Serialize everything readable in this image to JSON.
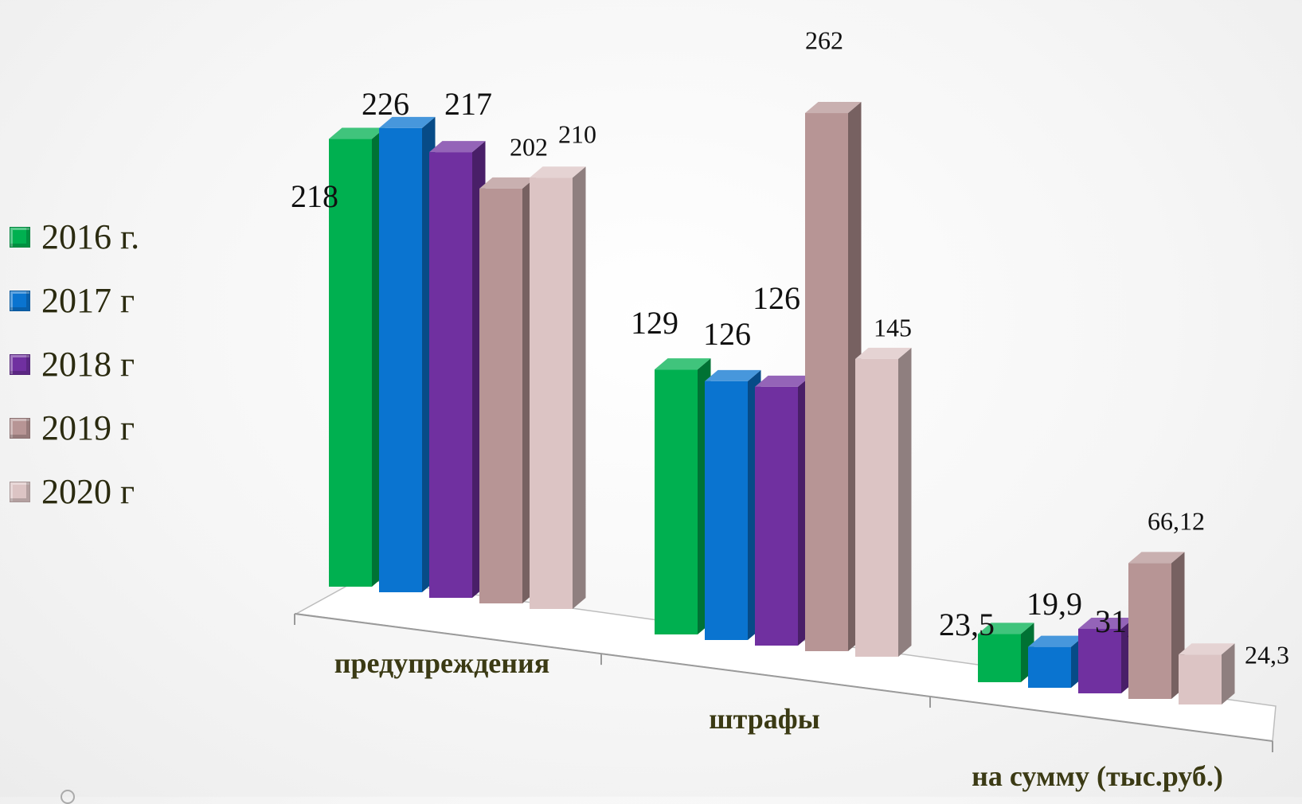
{
  "chart_data": {
    "type": "bar",
    "title": "",
    "xlabel": "",
    "ylabel": "",
    "categories": [
      "предупреждения",
      "штрафы",
      "на сумму (тыс.руб.)"
    ],
    "series": [
      {
        "name": "2016 г.",
        "color": "#00b050",
        "values": [
          218,
          129,
          23.5
        ],
        "labels": [
          "218",
          "129",
          "23,5"
        ]
      },
      {
        "name": "2017 г",
        "color": "#0a74d0",
        "values": [
          226,
          126,
          19.9
        ],
        "labels": [
          "226",
          "126",
          "19,9"
        ]
      },
      {
        "name": "2018 г",
        "color": "#7030a0",
        "values": [
          217,
          126,
          31.4
        ],
        "labels": [
          "217",
          "126",
          "31,4"
        ]
      },
      {
        "name": "2019 г",
        "color": "#b79595",
        "values": [
          202,
          262,
          66.12
        ],
        "labels": [
          "202",
          "262",
          "66,12"
        ]
      },
      {
        "name": "2020 г",
        "color": "#dcc4c4",
        "values": [
          210,
          145,
          24.3
        ],
        "labels": [
          "210",
          "145",
          "24,3"
        ]
      }
    ],
    "ylim": [
      0,
      270
    ],
    "grid": false,
    "legend": "left",
    "style": "3d-column"
  }
}
